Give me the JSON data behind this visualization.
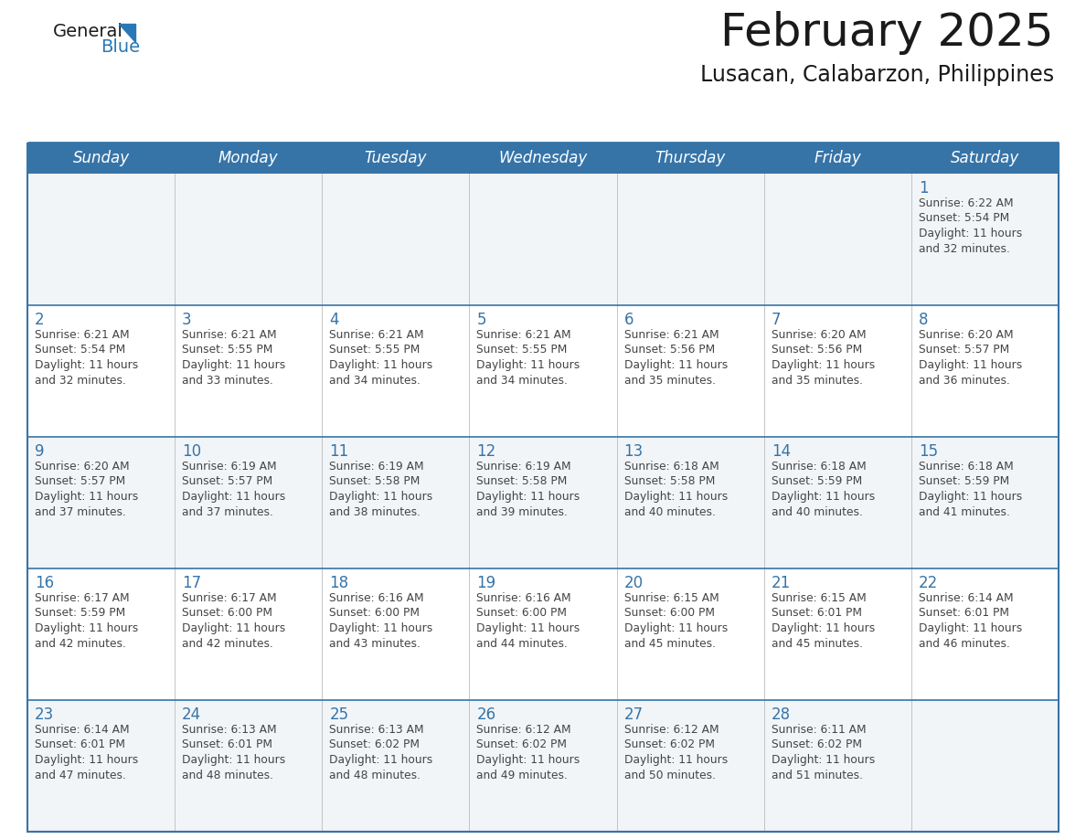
{
  "title": "February 2025",
  "subtitle": "Lusacan, Calabarzon, Philippines",
  "days_of_week": [
    "Sunday",
    "Monday",
    "Tuesday",
    "Wednesday",
    "Thursday",
    "Friday",
    "Saturday"
  ],
  "header_bg_color": "#3674a8",
  "header_text_color": "#ffffff",
  "divider_color": "#3674a8",
  "row_divider_color": "#3674a8",
  "day_number_color": "#3674a8",
  "text_color": "#444444",
  "title_color": "#1a1a1a",
  "subtitle_color": "#1a1a1a",
  "row_bg_even": "#f2f5f8",
  "row_bg_odd": "#ffffff",
  "calendar_data": [
    [
      {
        "day": null,
        "sunrise": null,
        "sunset": null,
        "daylight_line1": null,
        "daylight_line2": null
      },
      {
        "day": null,
        "sunrise": null,
        "sunset": null,
        "daylight_line1": null,
        "daylight_line2": null
      },
      {
        "day": null,
        "sunrise": null,
        "sunset": null,
        "daylight_line1": null,
        "daylight_line2": null
      },
      {
        "day": null,
        "sunrise": null,
        "sunset": null,
        "daylight_line1": null,
        "daylight_line2": null
      },
      {
        "day": null,
        "sunrise": null,
        "sunset": null,
        "daylight_line1": null,
        "daylight_line2": null
      },
      {
        "day": null,
        "sunrise": null,
        "sunset": null,
        "daylight_line1": null,
        "daylight_line2": null
      },
      {
        "day": "1",
        "sunrise": "Sunrise: 6:22 AM",
        "sunset": "Sunset: 5:54 PM",
        "daylight_line1": "Daylight: 11 hours",
        "daylight_line2": "and 32 minutes."
      }
    ],
    [
      {
        "day": "2",
        "sunrise": "Sunrise: 6:21 AM",
        "sunset": "Sunset: 5:54 PM",
        "daylight_line1": "Daylight: 11 hours",
        "daylight_line2": "and 32 minutes."
      },
      {
        "day": "3",
        "sunrise": "Sunrise: 6:21 AM",
        "sunset": "Sunset: 5:55 PM",
        "daylight_line1": "Daylight: 11 hours",
        "daylight_line2": "and 33 minutes."
      },
      {
        "day": "4",
        "sunrise": "Sunrise: 6:21 AM",
        "sunset": "Sunset: 5:55 PM",
        "daylight_line1": "Daylight: 11 hours",
        "daylight_line2": "and 34 minutes."
      },
      {
        "day": "5",
        "sunrise": "Sunrise: 6:21 AM",
        "sunset": "Sunset: 5:55 PM",
        "daylight_line1": "Daylight: 11 hours",
        "daylight_line2": "and 34 minutes."
      },
      {
        "day": "6",
        "sunrise": "Sunrise: 6:21 AM",
        "sunset": "Sunset: 5:56 PM",
        "daylight_line1": "Daylight: 11 hours",
        "daylight_line2": "and 35 minutes."
      },
      {
        "day": "7",
        "sunrise": "Sunrise: 6:20 AM",
        "sunset": "Sunset: 5:56 PM",
        "daylight_line1": "Daylight: 11 hours",
        "daylight_line2": "and 35 minutes."
      },
      {
        "day": "8",
        "sunrise": "Sunrise: 6:20 AM",
        "sunset": "Sunset: 5:57 PM",
        "daylight_line1": "Daylight: 11 hours",
        "daylight_line2": "and 36 minutes."
      }
    ],
    [
      {
        "day": "9",
        "sunrise": "Sunrise: 6:20 AM",
        "sunset": "Sunset: 5:57 PM",
        "daylight_line1": "Daylight: 11 hours",
        "daylight_line2": "and 37 minutes."
      },
      {
        "day": "10",
        "sunrise": "Sunrise: 6:19 AM",
        "sunset": "Sunset: 5:57 PM",
        "daylight_line1": "Daylight: 11 hours",
        "daylight_line2": "and 37 minutes."
      },
      {
        "day": "11",
        "sunrise": "Sunrise: 6:19 AM",
        "sunset": "Sunset: 5:58 PM",
        "daylight_line1": "Daylight: 11 hours",
        "daylight_line2": "and 38 minutes."
      },
      {
        "day": "12",
        "sunrise": "Sunrise: 6:19 AM",
        "sunset": "Sunset: 5:58 PM",
        "daylight_line1": "Daylight: 11 hours",
        "daylight_line2": "and 39 minutes."
      },
      {
        "day": "13",
        "sunrise": "Sunrise: 6:18 AM",
        "sunset": "Sunset: 5:58 PM",
        "daylight_line1": "Daylight: 11 hours",
        "daylight_line2": "and 40 minutes."
      },
      {
        "day": "14",
        "sunrise": "Sunrise: 6:18 AM",
        "sunset": "Sunset: 5:59 PM",
        "daylight_line1": "Daylight: 11 hours",
        "daylight_line2": "and 40 minutes."
      },
      {
        "day": "15",
        "sunrise": "Sunrise: 6:18 AM",
        "sunset": "Sunset: 5:59 PM",
        "daylight_line1": "Daylight: 11 hours",
        "daylight_line2": "and 41 minutes."
      }
    ],
    [
      {
        "day": "16",
        "sunrise": "Sunrise: 6:17 AM",
        "sunset": "Sunset: 5:59 PM",
        "daylight_line1": "Daylight: 11 hours",
        "daylight_line2": "and 42 minutes."
      },
      {
        "day": "17",
        "sunrise": "Sunrise: 6:17 AM",
        "sunset": "Sunset: 6:00 PM",
        "daylight_line1": "Daylight: 11 hours",
        "daylight_line2": "and 42 minutes."
      },
      {
        "day": "18",
        "sunrise": "Sunrise: 6:16 AM",
        "sunset": "Sunset: 6:00 PM",
        "daylight_line1": "Daylight: 11 hours",
        "daylight_line2": "and 43 minutes."
      },
      {
        "day": "19",
        "sunrise": "Sunrise: 6:16 AM",
        "sunset": "Sunset: 6:00 PM",
        "daylight_line1": "Daylight: 11 hours",
        "daylight_line2": "and 44 minutes."
      },
      {
        "day": "20",
        "sunrise": "Sunrise: 6:15 AM",
        "sunset": "Sunset: 6:00 PM",
        "daylight_line1": "Daylight: 11 hours",
        "daylight_line2": "and 45 minutes."
      },
      {
        "day": "21",
        "sunrise": "Sunrise: 6:15 AM",
        "sunset": "Sunset: 6:01 PM",
        "daylight_line1": "Daylight: 11 hours",
        "daylight_line2": "and 45 minutes."
      },
      {
        "day": "22",
        "sunrise": "Sunrise: 6:14 AM",
        "sunset": "Sunset: 6:01 PM",
        "daylight_line1": "Daylight: 11 hours",
        "daylight_line2": "and 46 minutes."
      }
    ],
    [
      {
        "day": "23",
        "sunrise": "Sunrise: 6:14 AM",
        "sunset": "Sunset: 6:01 PM",
        "daylight_line1": "Daylight: 11 hours",
        "daylight_line2": "and 47 minutes."
      },
      {
        "day": "24",
        "sunrise": "Sunrise: 6:13 AM",
        "sunset": "Sunset: 6:01 PM",
        "daylight_line1": "Daylight: 11 hours",
        "daylight_line2": "and 48 minutes."
      },
      {
        "day": "25",
        "sunrise": "Sunrise: 6:13 AM",
        "sunset": "Sunset: 6:02 PM",
        "daylight_line1": "Daylight: 11 hours",
        "daylight_line2": "and 48 minutes."
      },
      {
        "day": "26",
        "sunrise": "Sunrise: 6:12 AM",
        "sunset": "Sunset: 6:02 PM",
        "daylight_line1": "Daylight: 11 hours",
        "daylight_line2": "and 49 minutes."
      },
      {
        "day": "27",
        "sunrise": "Sunrise: 6:12 AM",
        "sunset": "Sunset: 6:02 PM",
        "daylight_line1": "Daylight: 11 hours",
        "daylight_line2": "and 50 minutes."
      },
      {
        "day": "28",
        "sunrise": "Sunrise: 6:11 AM",
        "sunset": "Sunset: 6:02 PM",
        "daylight_line1": "Daylight: 11 hours",
        "daylight_line2": "and 51 minutes."
      },
      {
        "day": null,
        "sunrise": null,
        "sunset": null,
        "daylight_line1": null,
        "daylight_line2": null
      }
    ]
  ]
}
